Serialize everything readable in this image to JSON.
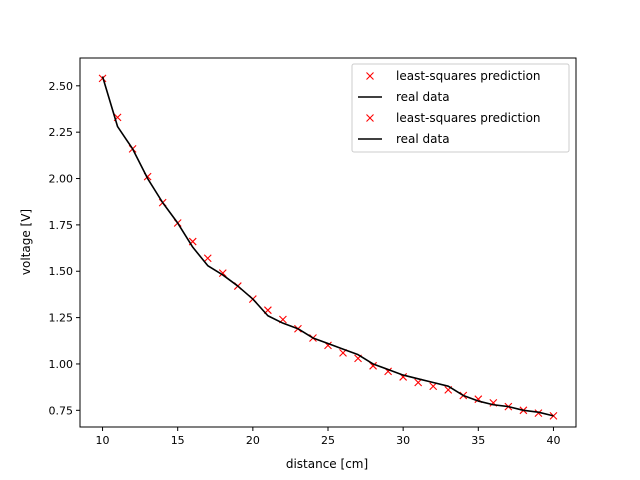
{
  "chart_data": {
    "type": "line",
    "title": "",
    "xlabel": "distance [cm]",
    "ylabel": "voltage [V]",
    "xlim": [
      8.5,
      41.5
    ],
    "ylim": [
      0.66,
      2.65
    ],
    "xticks": [
      10,
      15,
      20,
      25,
      30,
      35,
      40
    ],
    "xtick_labels": [
      "10",
      "15",
      "20",
      "25",
      "30",
      "35",
      "40"
    ],
    "yticks": [
      0.75,
      1.0,
      1.25,
      1.5,
      1.75,
      2.0,
      2.25,
      2.5
    ],
    "ytick_labels": [
      "0.75",
      "1.00",
      "1.25",
      "1.50",
      "1.75",
      "2.00",
      "2.25",
      "2.50"
    ],
    "grid": false,
    "legend_position": "top-right",
    "x": [
      10,
      11,
      12,
      13,
      14,
      15,
      16,
      17,
      18,
      19,
      20,
      21,
      22,
      23,
      24,
      25,
      26,
      27,
      28,
      29,
      30,
      31,
      32,
      33,
      34,
      35,
      36,
      37,
      38,
      39,
      40
    ],
    "series": [
      {
        "name": "least-squares prediction",
        "style": "markers",
        "marker": "x",
        "color": "#ff0000",
        "values": [
          2.54,
          2.33,
          2.16,
          2.01,
          1.87,
          1.76,
          1.66,
          1.57,
          1.49,
          1.42,
          1.35,
          1.29,
          1.24,
          1.19,
          1.14,
          1.1,
          1.06,
          1.03,
          0.99,
          0.96,
          0.93,
          0.9,
          0.88,
          0.86,
          0.83,
          0.81,
          0.79,
          0.77,
          0.75,
          0.735,
          0.72
        ]
      },
      {
        "name": "real data",
        "style": "line",
        "color": "#000000",
        "values": [
          2.55,
          2.28,
          2.16,
          2.0,
          1.87,
          1.76,
          1.63,
          1.53,
          1.48,
          1.42,
          1.35,
          1.26,
          1.22,
          1.19,
          1.14,
          1.11,
          1.08,
          1.05,
          1.0,
          0.97,
          0.94,
          0.92,
          0.9,
          0.88,
          0.83,
          0.8,
          0.78,
          0.77,
          0.75,
          0.74,
          0.72
        ]
      }
    ],
    "legend": [
      {
        "label": "least-squares prediction",
        "kind": "marker",
        "color": "#ff0000"
      },
      {
        "label": "real data",
        "kind": "line",
        "color": "#000000"
      },
      {
        "label": "least-squares prediction",
        "kind": "marker",
        "color": "#ff0000"
      },
      {
        "label": "real data",
        "kind": "line",
        "color": "#000000"
      }
    ]
  }
}
